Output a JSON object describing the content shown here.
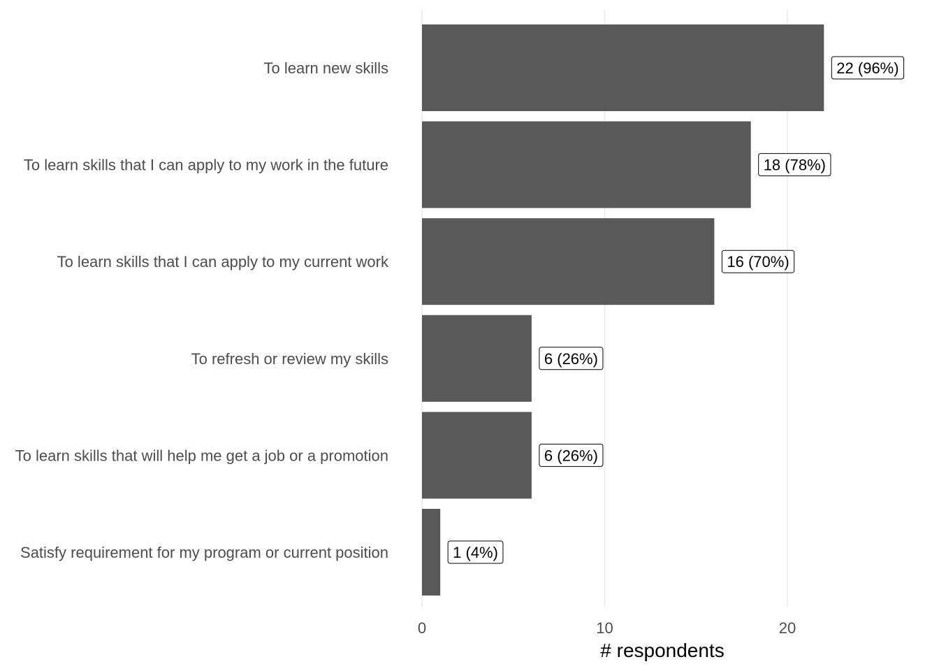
{
  "chart_data": {
    "type": "bar",
    "orientation": "horizontal",
    "categories": [
      "To learn new skills",
      "To learn skills that I can apply to my work in the future",
      "To learn skills that I can apply to my current work",
      "To refresh or review my skills",
      "To learn skills that will help me get a job or a promotion",
      "Satisfy requirement for my program or current position"
    ],
    "values": [
      22,
      18,
      16,
      6,
      6,
      1
    ],
    "data_labels": [
      "22 (96%)",
      "18 (78%)",
      "16 (70%)",
      "6 (26%)",
      "6 (26%)",
      "1 (4%)"
    ],
    "title": "",
    "xlabel": "# respondents",
    "ylabel": "",
    "xlim": [
      0,
      26
    ],
    "x_ticks": [
      0,
      10,
      20
    ],
    "grid": true,
    "legend": "none",
    "bar_color": "#595959",
    "grid_color": "#ebebeb"
  }
}
